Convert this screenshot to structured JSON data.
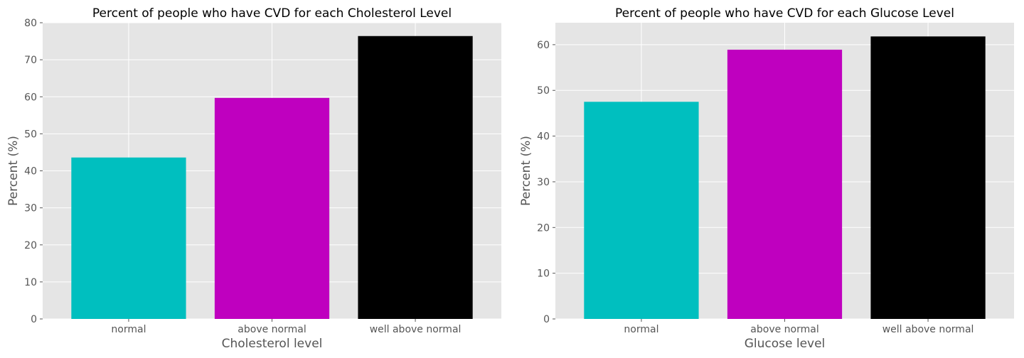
{
  "chart_data": [
    {
      "type": "bar",
      "title": "Percent of people who have CVD for each Cholesterol Level",
      "xlabel": "Cholesterol level",
      "ylabel": "Percent (%)",
      "categories": [
        "normal",
        "above normal",
        "well above normal"
      ],
      "values": [
        43.6,
        59.7,
        76.4
      ],
      "colors": [
        "#00bfbf",
        "#bf00bf",
        "#000000"
      ],
      "ylim": [
        0,
        80
      ],
      "yticks": [
        0,
        10,
        20,
        30,
        40,
        50,
        60,
        70,
        80
      ],
      "grid": true
    },
    {
      "type": "bar",
      "title": "Percent of people who have CVD for each Glucose Level",
      "xlabel": "Glucose level",
      "ylabel": "Percent (%)",
      "categories": [
        "normal",
        "above normal",
        "well above normal"
      ],
      "values": [
        47.5,
        58.9,
        61.8
      ],
      "colors": [
        "#00bfbf",
        "#bf00bf",
        "#000000"
      ],
      "ylim": [
        0,
        64.8
      ],
      "yticks": [
        0,
        10,
        20,
        30,
        40,
        50,
        60
      ],
      "grid": true
    }
  ]
}
